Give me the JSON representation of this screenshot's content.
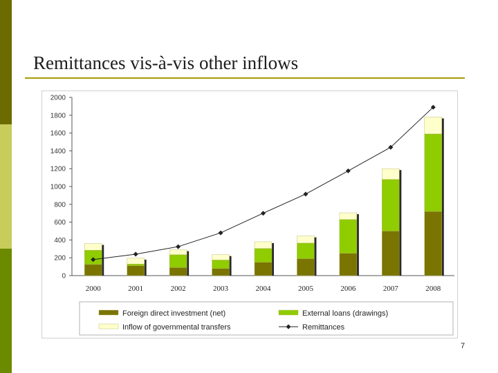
{
  "slide": {
    "title": "Remittances vis-à-vis other inflows",
    "page_number": "7"
  },
  "colors": {
    "sidebar_top": "#6b6b00",
    "sidebar_mid": "#c8cc5a",
    "sidebar_bottom": "#6b8a00",
    "fdi": "#7a7500",
    "loans": "#8fcc00",
    "transfers": "#ffffcc",
    "remittances": "#222222"
  },
  "chart_data": {
    "type": "bar",
    "stacked": true,
    "categories": [
      "2000",
      "2001",
      "2002",
      "2003",
      "2004",
      "2005",
      "2006",
      "2007",
      "2008"
    ],
    "ylim": [
      0,
      2000
    ],
    "yticks": [
      "0",
      "200",
      "400",
      "600",
      "800",
      "1000",
      "1200",
      "1400",
      "1600",
      "1800",
      "2000"
    ],
    "grid": false,
    "legend_position": "bottom",
    "series": [
      {
        "name": "Foreign direct investment (net)",
        "type": "bar",
        "values": [
          125,
          110,
          90,
          80,
          150,
          190,
          250,
          500,
          720
        ]
      },
      {
        "name": "External loans (drawings)",
        "type": "bar",
        "values": [
          160,
          20,
          145,
          95,
          155,
          175,
          380,
          580,
          870
        ]
      },
      {
        "name": "Inflow of governmental transfers",
        "type": "bar",
        "values": [
          75,
          65,
          55,
          60,
          75,
          80,
          75,
          120,
          190
        ]
      },
      {
        "name": "Remittances",
        "type": "line",
        "values": [
          180,
          240,
          325,
          480,
          700,
          915,
          1175,
          1440,
          1890
        ]
      }
    ]
  }
}
